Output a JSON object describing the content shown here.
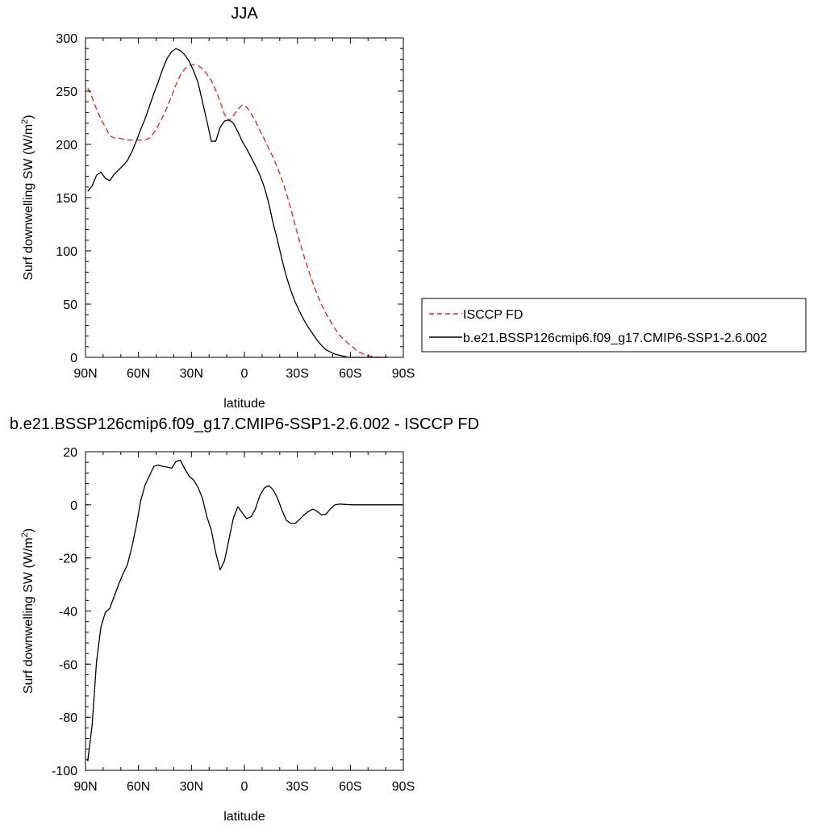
{
  "chart_data": [
    {
      "type": "line",
      "title": "JJA",
      "xlabel": "latitude",
      "ylabel": "Surf downwelling SW (W/m",
      "ylabel_sup": "2",
      "ylabel_close": ")",
      "xlim": [
        90,
        -90
      ],
      "ylim": [
        0,
        300
      ],
      "xticks": [
        90,
        60,
        30,
        0,
        -30,
        -60,
        -90
      ],
      "xtick_labels": [
        "90N",
        "60N",
        "30N",
        "0",
        "30S",
        "60S",
        "90S"
      ],
      "yticks": [
        0,
        50,
        100,
        150,
        200,
        250,
        300
      ],
      "ytick_labels": [
        "0",
        "50",
        "100",
        "150",
        "200",
        "250",
        "300"
      ],
      "legend_position": "right",
      "series": [
        {
          "name": "ISCCP FD",
          "color": "#e8201e",
          "dash": "dashed",
          "x": [
            88.75,
            86.25,
            83.75,
            81.25,
            78.75,
            76.25,
            73.75,
            71.25,
            68.75,
            66.25,
            63.75,
            61.25,
            58.75,
            56.25,
            53.75,
            51.25,
            48.75,
            46.25,
            43.75,
            41.25,
            38.75,
            36.25,
            33.75,
            31.25,
            28.75,
            26.25,
            23.75,
            21.25,
            18.75,
            16.25,
            13.75,
            11.25,
            8.75,
            6.25,
            3.75,
            1.25,
            -1.25,
            -3.75,
            -6.25,
            -8.75,
            -11.25,
            -13.75,
            -16.25,
            -18.75,
            -21.25,
            -23.75,
            -26.25,
            -28.75,
            -31.25,
            -33.75,
            -36.25,
            -38.75,
            -41.25,
            -43.75,
            -46.25,
            -48.75,
            -51.25,
            -53.75,
            -56.25,
            -58.75,
            -61.25,
            -63.75,
            -66.25,
            -68.75,
            -71.25,
            -73.75,
            -76.25,
            -78.75,
            -81.25
          ],
          "y": [
            253,
            244,
            233,
            224,
            216,
            208,
            206,
            206,
            205,
            204,
            204,
            204,
            204,
            204,
            206,
            211,
            218,
            226,
            235,
            245,
            256,
            265,
            271,
            274,
            275,
            274,
            271,
            266,
            260,
            251,
            240,
            228,
            222,
            227,
            233,
            237,
            235,
            229,
            222,
            213,
            205,
            196,
            188,
            178,
            167,
            154,
            140,
            124,
            109,
            95,
            82,
            70,
            59,
            49,
            41,
            34,
            27,
            21,
            17,
            13,
            10,
            6,
            4,
            2,
            1,
            0.5,
            0,
            0,
            0
          ]
        },
        {
          "name": "b.e21.BSSP126cmip6.f09_g17.CMIP6-SSP1-2.6.002",
          "color": "#000000",
          "dash": "solid",
          "x": [
            88.75,
            86.25,
            83.75,
            81.25,
            78.75,
            76.25,
            73.75,
            71.25,
            68.75,
            66.25,
            63.75,
            61.25,
            58.75,
            56.25,
            53.75,
            51.25,
            48.75,
            46.25,
            43.75,
            41.25,
            38.75,
            36.25,
            33.75,
            31.25,
            28.75,
            26.25,
            23.75,
            21.25,
            18.75,
            16.25,
            13.75,
            11.25,
            8.75,
            6.25,
            3.75,
            1.25,
            -1.25,
            -3.75,
            -6.25,
            -8.75,
            -11.25,
            -13.75,
            -16.25,
            -18.75,
            -21.25,
            -23.75,
            -26.25,
            -28.75,
            -31.25,
            -33.75,
            -36.25,
            -38.75,
            -41.25,
            -43.75,
            -46.25,
            -48.75,
            -51.25,
            -53.75,
            -56.25,
            -58.75,
            -61.25,
            -63.75,
            -66.25,
            -68.75,
            -71.25,
            -73.75,
            -76.25,
            -78.75,
            -81.25
          ],
          "y": [
            156,
            161,
            171,
            174,
            168,
            166,
            172,
            176,
            180,
            185,
            193,
            203,
            214,
            224,
            236,
            248,
            259,
            271,
            281,
            287,
            290,
            288,
            284,
            278,
            269,
            258,
            240,
            222,
            203,
            203,
            216,
            222,
            223,
            220,
            212,
            203,
            196,
            188,
            180,
            171,
            160,
            145,
            126,
            110,
            92,
            76,
            63,
            52,
            43,
            35,
            28,
            22,
            16,
            11,
            7,
            5,
            3,
            2,
            1,
            0,
            0,
            0,
            0,
            0,
            0,
            0,
            0,
            0,
            0
          ]
        }
      ]
    },
    {
      "type": "line",
      "title": "b.e21.BSSP126cmip6.f09_g17.CMIP6-SSP1-2.6.002 - ISCCP FD",
      "xlabel": "latitude",
      "ylabel": "Surf downwelling SW (W/m",
      "ylabel_sup": "2",
      "ylabel_close": ")",
      "xlim": [
        90,
        -90
      ],
      "ylim": [
        -100,
        20
      ],
      "xticks": [
        90,
        60,
        30,
        0,
        -30,
        -60,
        -90
      ],
      "xtick_labels": [
        "90N",
        "60N",
        "30N",
        "0",
        "30S",
        "60S",
        "90S"
      ],
      "yticks": [
        -100,
        -80,
        -60,
        -40,
        -20,
        0,
        20
      ],
      "ytick_labels": [
        "-100",
        "-80",
        "-60",
        "-40",
        "-20",
        "0",
        "20"
      ],
      "series": [
        {
          "color": "#000000",
          "dash": "solid",
          "x": [
            88.75,
            86.25,
            83.75,
            81.25,
            78.75,
            76.25,
            73.75,
            71.25,
            68.75,
            66.25,
            63.75,
            61.25,
            58.75,
            56.25,
            53.75,
            51.25,
            48.75,
            46.25,
            43.75,
            41.25,
            38.75,
            36.25,
            33.75,
            31.25,
            28.75,
            26.25,
            23.75,
            21.25,
            18.75,
            16.25,
            13.75,
            11.25,
            8.75,
            6.25,
            3.75,
            1.25,
            -1.25,
            -3.75,
            -6.25,
            -8.75,
            -11.25,
            -13.75,
            -16.25,
            -18.75,
            -21.25,
            -23.75,
            -26.25,
            -28.75,
            -31.25,
            -33.75,
            -36.25,
            -38.75,
            -41.25,
            -43.75,
            -46.25,
            -48.75,
            -51.25,
            -53.75,
            -56.25,
            -58.75,
            -61.25,
            -63.75,
            -66.25,
            -68.75,
            -71.25,
            -73.75,
            -76.25,
            -78.75,
            -81.25,
            -83.75,
            -86.25,
            -88.75
          ],
          "y": [
            -96.5,
            -83,
            -59,
            -46,
            -40.5,
            -39,
            -34.5,
            -30,
            -26,
            -22.5,
            -16,
            -8,
            1.5,
            7.5,
            11,
            14.5,
            15,
            14.5,
            14.2,
            13.8,
            16.3,
            16.8,
            13.5,
            10.8,
            9.3,
            6.5,
            2.5,
            -4.5,
            -9.5,
            -18,
            -24.5,
            -21,
            -13,
            -5,
            -0.7,
            -3,
            -5.2,
            -4.5,
            -1.5,
            3.5,
            6.3,
            7.2,
            5.7,
            2.5,
            -2,
            -5.8,
            -7,
            -7,
            -5.5,
            -3.8,
            -2.5,
            -1.6,
            -2.5,
            -3.8,
            -3.5,
            -1.5,
            0,
            0.3,
            0.2,
            0.1,
            0,
            0,
            0,
            0,
            0,
            0,
            0,
            0,
            0,
            0,
            0,
            0
          ]
        }
      ]
    }
  ]
}
